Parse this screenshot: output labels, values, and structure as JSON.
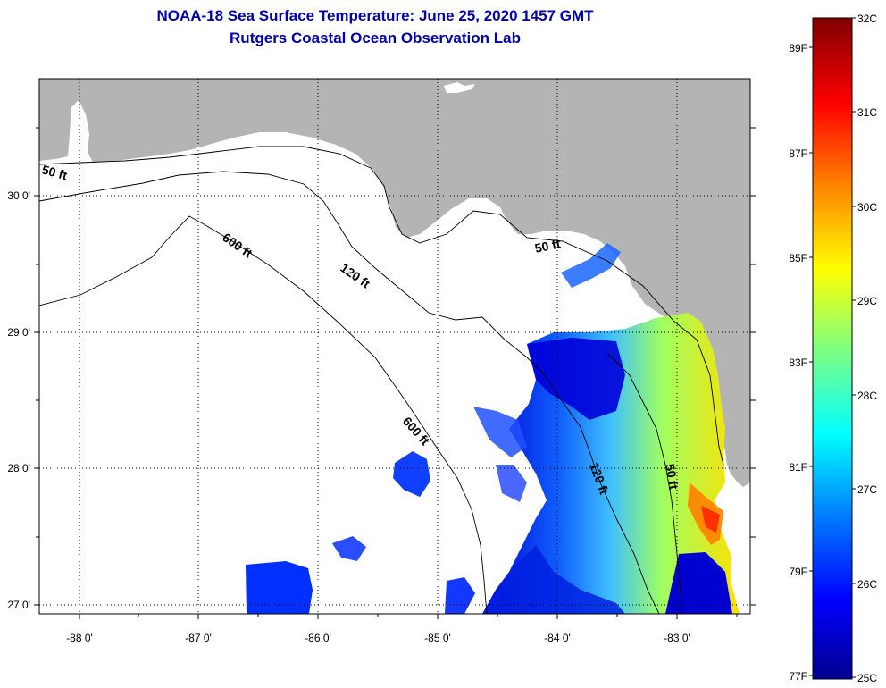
{
  "title_line1": "NOAA-18 Sea Surface Temperature:  June 25, 2020 1457 GMT",
  "title_line2": "Rutgers Coastal Ocean Observation Lab",
  "map": {
    "lon_ticks": [
      "-88 0'",
      "-87 0'",
      "-86 0'",
      "-85 0'",
      "-84 0'",
      "-83 0'"
    ],
    "lat_ticks": [
      "30 0'",
      "29 0'",
      "28 0'",
      "27 0'"
    ],
    "contour_labels": [
      {
        "id": "c50w",
        "text": "50 ft"
      },
      {
        "id": "c600a",
        "text": "600 ft"
      },
      {
        "id": "c120a",
        "text": "120 ft"
      },
      {
        "id": "c50e",
        "text": "50 ft"
      },
      {
        "id": "c600b",
        "text": "600 ft"
      },
      {
        "id": "c120b",
        "text": "120 ft"
      },
      {
        "id": "c50s",
        "text": "50 ft"
      }
    ]
  },
  "colorbar": {
    "celsius_labels": [
      "32C",
      "31C",
      "30C",
      "29C",
      "28C",
      "27C",
      "26C",
      "25C"
    ],
    "fahrenheit_labels": [
      "89F",
      "87F",
      "85F",
      "83F",
      "81F",
      "79F",
      "77F"
    ],
    "colors": [
      "#00008f",
      "#0000ff",
      "#0080ff",
      "#00ffff",
      "#80ff80",
      "#ffff00",
      "#ff8000",
      "#ff0000",
      "#800000"
    ]
  },
  "colors": {
    "land": "#b4b4b4",
    "water": "#ffffff",
    "title": "#0000aa"
  }
}
